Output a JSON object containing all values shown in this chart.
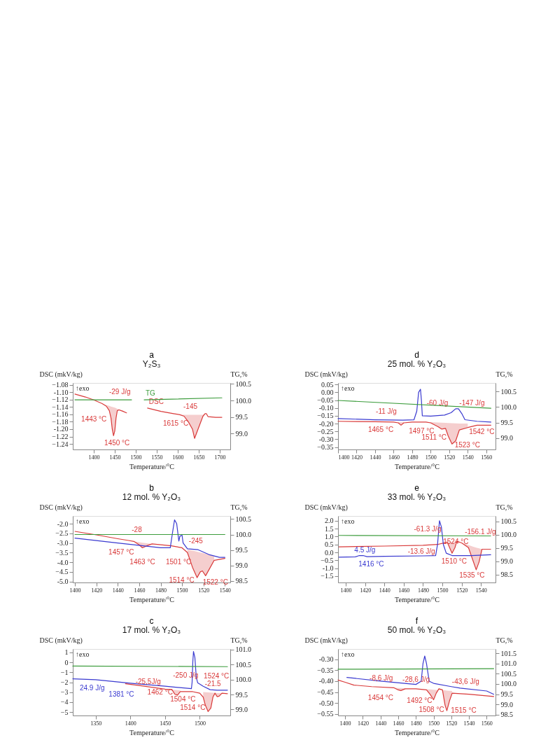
{
  "chart_data": [
    {
      "type": "line",
      "title": "a",
      "subtitle": "Y₂S₃",
      "xlabel": "Temperature/°C",
      "ylabel": "DSC (mkV/kg)",
      "y2label": "TG,%",
      "grid": false,
      "xlim": [
        1350,
        1725
      ],
      "xticks": [
        1400,
        1450,
        1500,
        1550,
        1600,
        1650,
        1700
      ],
      "ylim": [
        -1.255,
        -1.075
      ],
      "yticks": [
        -1.08,
        {
          "value": -1.1,
          "label": "-1.10"
        },
        -1.12,
        -1.14,
        -1.16,
        -1.18,
        {
          "value": -1.2,
          "label": "-1.20"
        },
        -1.22,
        -1.24
      ],
      "y2lim": [
        98.52,
        100.53
      ],
      "y2ticks": [
        {
          "value": 99,
          "label": "99.0"
        },
        99.5,
        {
          "value": 100,
          "label": "100.0"
        },
        100.5
      ],
      "series": [
        {
          "name": "DSC",
          "color": "#d93a3a",
          "x": [
            1355,
            1380,
            1400,
            1420,
            1430,
            1437,
            1441,
            1444,
            1447,
            1450,
            1453,
            1456,
            1460,
            1470,
            1478,
            1500,
            1528,
            1560,
            1590,
            1605,
            1615,
            1625,
            1635,
            1640,
            1650,
            1660,
            1665,
            1668,
            1672,
            1690,
            1705
          ],
          "values": [
            -1.105,
            -1.113,
            -1.121,
            -1.131,
            -1.138,
            -1.15,
            -1.17,
            -1.2,
            -1.218,
            -1.205,
            -1.17,
            -1.15,
            -1.148,
            -1.152,
            -1.156,
            null,
            -1.143,
            -1.152,
            -1.158,
            -1.161,
            -1.165,
            -1.18,
            -1.2,
            -1.225,
            -1.195,
            -1.165,
            -1.158,
            -1.158,
            -1.166,
            -1.168,
            -1.168
          ],
          "lower": [
            null,
            null,
            null,
            -1.131,
            -1.135,
            -1.137,
            -1.139,
            -1.14,
            -1.141,
            -1.142,
            -1.143,
            -1.145,
            -1.146,
            -1.15,
            null,
            null,
            null,
            null,
            null,
            -1.161,
            -1.161,
            -1.161,
            -1.161,
            -1.161,
            -1.161,
            -1.161,
            -1.158,
            null,
            null,
            null,
            null
          ],
          "upper": [
            null,
            null,
            null,
            -1.131,
            -1.138,
            -1.15,
            -1.17,
            -1.2,
            -1.218,
            -1.205,
            -1.17,
            -1.15,
            -1.148,
            -1.152,
            null,
            null,
            null,
            null,
            null,
            -1.161,
            -1.165,
            -1.18,
            -1.2,
            -1.225,
            -1.195,
            -1.165,
            -1.158,
            null,
            null,
            null,
            null
          ]
        },
        {
          "name": "TG",
          "color": "#3c9c3c",
          "axis": "y2",
          "x": [
            1355,
            1490,
            1500,
            1520,
            1705
          ],
          "values": [
            100.02,
            100.02,
            null,
            100.02,
            100.08
          ]
        }
      ],
      "annotations": [
        "↑exo",
        {
          "text": "-29 J/g",
          "x": 1447,
          "y": -1.141
        },
        {
          "text": "1443 °C",
          "x": 1437,
          "y": -1.15
        },
        {
          "text": "1450 °C",
          "x": 1447,
          "y": -1.218
        },
        {
          "text": "-145",
          "x": 1635,
          "y": -1.161
        },
        {
          "text": "1615 °C",
          "x": 1615,
          "y": -1.165
        }
      ]
    },
    {
      "type": "line",
      "title": "d",
      "subtitle": "25 mol. % Y₂O₃",
      "xlabel": "Temperature/°C",
      "ylabel": "DSC (mkV/kg)",
      "y2label": "TG,%",
      "grid": false,
      "xlim": [
        1400,
        1570
      ],
      "xticks": [
        1400,
        1420,
        1440,
        1460,
        1480,
        1500,
        1520,
        1540,
        1560
      ],
      "ylim": [
        -0.365,
        0.06
      ],
      "yticks": [
        0.05,
        {
          "value": 0,
          "label": "0.00"
        },
        -0.05,
        {
          "value": -0.1,
          "label": "-0.10"
        },
        -0.15,
        {
          "value": -0.2,
          "label": "-0.20"
        },
        -0.25,
        {
          "value": -0.3,
          "label": "-0.30"
        },
        -0.35
      ],
      "y2lim": [
        98.64,
        100.77
      ],
      "y2ticks": [
        {
          "value": 99,
          "label": "99.0"
        },
        99.5,
        {
          "value": 100,
          "label": "100.0"
        },
        100.5
      ],
      "series": [
        {
          "color": "#d93a3a",
          "x": [
            1400,
            1440,
            1460,
            1465,
            1468,
            1471,
            1480,
            1495,
            1500,
            1508,
            1512,
            1516,
            1519,
            1523,
            1527,
            1531,
            1540,
            1550,
            1565
          ],
          "values": [
            -0.185,
            -0.188,
            -0.19,
            -0.195,
            -0.21,
            -0.195,
            -0.19,
            -0.19,
            -0.195,
            -0.22,
            -0.235,
            -0.23,
            -0.28,
            -0.33,
            -0.31,
            -0.24,
            -0.225,
            -0.21,
            -0.21
          ],
          "lower": [
            null,
            null,
            -0.19,
            -0.19,
            -0.19,
            -0.19,
            null,
            -0.19,
            -0.191,
            -0.193,
            -0.194,
            -0.195,
            -0.196,
            -0.197,
            -0.198,
            -0.199,
            -0.2,
            null,
            null
          ],
          "upper": [
            null,
            null,
            -0.19,
            -0.195,
            -0.21,
            -0.195,
            null,
            -0.19,
            -0.195,
            -0.22,
            -0.235,
            -0.23,
            -0.28,
            -0.33,
            -0.31,
            -0.24,
            -0.225,
            null,
            null
          ]
        },
        {
          "color": "#3a3ad0",
          "x": [
            1400,
            1440,
            1470,
            1482,
            1485,
            1487,
            1489,
            1490,
            1491,
            1500,
            1515,
            1522,
            1527,
            1530,
            1534,
            1537,
            1550,
            1565
          ],
          "values": [
            -0.168,
            -0.175,
            -0.178,
            -0.175,
            -0.12,
            0.0,
            0.02,
            -0.05,
            -0.15,
            -0.152,
            -0.145,
            -0.13,
            -0.105,
            -0.105,
            -0.14,
            -0.175,
            -0.185,
            -0.19
          ]
        },
        {
          "color": "#3c9c3c",
          "axis": "y2",
          "x": [
            1400,
            1565
          ],
          "values": [
            100.21,
            99.96
          ]
        }
      ],
      "annotations": [
        "↑exo",
        {
          "text": "-11 J/g",
          "x": 1468,
          "y": -0.19
        },
        {
          "text": "1465 °C",
          "x": 1465,
          "y": -0.195
        },
        {
          "text": "-60 J/g",
          "x": 1508,
          "y": -0.193
        },
        {
          "text": "1497 °C",
          "x": 1500,
          "y": -0.195
        },
        {
          "text": "-147 J/g",
          "x": 1531,
          "y": -0.199
        },
        {
          "text": "1511 °C",
          "x": 1512,
          "y": -0.235
        },
        {
          "text": "1523 °C",
          "x": 1523,
          "y": -0.33
        },
        {
          "text": "1542 °C",
          "x": 1540,
          "y": -0.225
        }
      ]
    },
    {
      "type": "line",
      "title": "b",
      "subtitle": "12 mol. % Y₂O₃",
      "xlabel": "Temperature/°C",
      "ylabel": "DSC (mkV/kg)",
      "y2label": "TG,%",
      "grid": false,
      "xlim": [
        1398,
        1545
      ],
      "xticks": [
        1400,
        1420,
        1440,
        1460,
        1480,
        1500,
        1520,
        1540
      ],
      "ylim": [
        -5.05,
        -1.6
      ],
      "yticks": [
        {
          "value": -2,
          "label": "-2.0"
        },
        -2.5,
        {
          "value": -3,
          "label": "-3.0"
        },
        -3.5,
        {
          "value": -4,
          "label": "-4.0"
        },
        -4.5,
        {
          "value": -5,
          "label": "-5.0"
        }
      ],
      "y2lim": [
        98.45,
        100.6
      ],
      "y2ticks": [
        98.5,
        {
          "value": 99,
          "label": "99.0"
        },
        99.5,
        {
          "value": 100,
          "label": "100.0"
        },
        100.5
      ],
      "series": [
        {
          "color": "#d93a3a",
          "x": [
            1400,
            1420,
            1440,
            1450,
            1455,
            1460,
            1463,
            1467,
            1472,
            1490,
            1500,
            1505,
            1510,
            1514,
            1517,
            1519,
            1522,
            1526,
            1530,
            1540
          ],
          "values": [
            -2.4,
            -2.58,
            -2.78,
            -2.87,
            -2.92,
            -3.1,
            -3.25,
            -3.15,
            -3.05,
            -3.15,
            -3.25,
            -3.5,
            -4.3,
            -4.8,
            -4.5,
            -4.45,
            -4.7,
            -4.3,
            -3.9,
            -3.8
          ],
          "lower": [
            null,
            null,
            null,
            -2.87,
            -2.92,
            -2.96,
            -2.99,
            -3.02,
            -3.05,
            null,
            null,
            -3.35,
            -3.4,
            -3.45,
            -3.5,
            -3.52,
            -3.56,
            -3.62,
            -3.7,
            null
          ],
          "upper": [
            null,
            null,
            null,
            -2.87,
            -2.92,
            -3.1,
            -3.25,
            -3.15,
            -3.05,
            null,
            null,
            -3.5,
            -4.3,
            -4.8,
            -4.5,
            -4.45,
            -4.7,
            -4.3,
            -3.9,
            null
          ]
        },
        {
          "color": "#3a3ad0",
          "x": [
            1400,
            1440,
            1480,
            1489,
            1491,
            1493,
            1495,
            1497,
            1498,
            1500,
            1501,
            1505,
            1515,
            1525,
            1535,
            1540
          ],
          "values": [
            -2.75,
            -3.0,
            -3.25,
            -3.25,
            -2.5,
            -1.8,
            -2.0,
            -2.9,
            -2.65,
            -2.6,
            -3.0,
            -3.3,
            -3.35,
            -3.6,
            -3.75,
            -3.75
          ]
        },
        {
          "color": "#3c9c3c",
          "axis": "y2",
          "x": [
            1400,
            1540
          ],
          "values": [
            100.0,
            100.0
          ]
        }
      ],
      "annotations": [
        "↑exo",
        {
          "text": "-28",
          "x": 1463,
          "y": -2.99
        },
        {
          "text": "1457 °C",
          "x": 1455,
          "y": -2.92
        },
        {
          "text": "1463 °C",
          "x": 1463,
          "y": -3.25
        },
        {
          "text": "-245",
          "x": 1522,
          "y": -3.56
        },
        {
          "text": "1501 °C",
          "x": 1500,
          "y": -3.25
        },
        {
          "text": "1514 °C",
          "x": 1514,
          "y": -4.8
        },
        {
          "text": "1522 °C",
          "x": 1522,
          "y": -4.7
        }
      ]
    },
    {
      "type": "line",
      "title": "e",
      "subtitle": "33 mol. % Y₂O₃",
      "xlabel": "Temperature/°C",
      "ylabel": "DSC (mkV/kg)",
      "y2label": "TG,%",
      "grid": false,
      "xlim": [
        1392,
        1555
      ],
      "xticks": [
        1400,
        1420,
        1440,
        1460,
        1480,
        1500,
        1520,
        1540
      ],
      "ylim": [
        -1.9,
        2.3
      ],
      "yticks": [
        {
          "value": 2,
          "label": "2.0"
        },
        1.5,
        {
          "value": 1,
          "label": "1.0"
        },
        0.5,
        {
          "value": 0,
          "label": "0.0"
        },
        -0.5,
        {
          "value": -1,
          "label": "-1.0"
        },
        -1.5
      ],
      "y2lim": [
        98.2,
        100.7
      ],
      "y2ticks": [
        98.5,
        {
          "value": 99,
          "label": "99.0"
        },
        99.5,
        {
          "value": 100,
          "label": "100.0"
        },
        100.5
      ],
      "series": [
        {
          "color": "#d93a3a",
          "x": [
            1393,
            1440,
            1480,
            1495,
            1502,
            1505,
            1510,
            1513,
            1515,
            1520,
            1527,
            1531,
            1535,
            1538,
            1541,
            1550
          ],
          "values": [
            0.35,
            0.4,
            0.45,
            0.5,
            0.6,
            0.65,
            -0.05,
            0.3,
            0.7,
            0.6,
            0.3,
            -0.4,
            -1.1,
            -0.6,
            0.2,
            0.2
          ],
          "lower": [
            null,
            null,
            null,
            null,
            0.6,
            0.62,
            0.65,
            0.68,
            0.7,
            0.6,
            0.47,
            0.38,
            0.3,
            0.25,
            0.2,
            null
          ],
          "upper": [
            null,
            null,
            null,
            null,
            0.6,
            0.65,
            -0.05,
            0.3,
            0.7,
            0.6,
            0.3,
            -0.4,
            -1.1,
            -0.6,
            0.2,
            null
          ]
        },
        {
          "color": "#3a3ad0",
          "x": [
            1393,
            1410,
            1414,
            1418,
            1422,
            1440,
            1480,
            1493,
            1495,
            1497,
            1499,
            1501,
            1504,
            1510,
            1530,
            1550
          ],
          "values": [
            -0.3,
            -0.28,
            -0.2,
            -0.2,
            -0.27,
            -0.25,
            -0.22,
            -0.2,
            0.5,
            2.0,
            1.6,
            0.5,
            -0.05,
            -0.2,
            -0.2,
            -0.15
          ]
        },
        {
          "color": "#3c9c3c",
          "axis": "y2",
          "x": [
            1393,
            1550
          ],
          "values": [
            99.97,
            99.95
          ]
        }
      ],
      "annotations": [
        "↑exo",
        {
          "text": "4.5 J/g",
          "x": 1414,
          "y": -0.2
        },
        {
          "text": "1416 °C",
          "x": 1422,
          "y": -0.27
        },
        {
          "text": "-61.3 J/g",
          "x": 1505,
          "y": 0.62
        },
        {
          "text": "-13.6 J/g",
          "x": 1495,
          "y": 0.5
        },
        {
          "text": "1524 °C",
          "x": 1527,
          "y": 0.3
        },
        {
          "text": "-156.1 J/g",
          "x": 1535,
          "y": 0.3
        },
        {
          "text": "1510 °C",
          "x": 1510,
          "y": -0.05
        },
        {
          "text": "1535 °C",
          "x": 1535,
          "y": -1.1
        }
      ]
    },
    {
      "type": "line",
      "title": "c",
      "subtitle": "17 mol. % Y₂O₃",
      "xlabel": "Temperature/°C",
      "ylabel": "DSC (mkV/kg)",
      "y2label": "TG,%",
      "grid": false,
      "xlim": [
        1317,
        1544
      ],
      "xticks": [
        1350,
        1400,
        1450,
        1500
      ],
      "ylim": [
        -5.35,
        1.35
      ],
      "yticks": [
        1,
        0,
        -1,
        -2,
        -3,
        -4,
        -5
      ],
      "y2lim": [
        98.8,
        101.02
      ],
      "y2ticks": [
        {
          "value": 99,
          "label": "99.0"
        },
        99.5,
        {
          "value": 100,
          "label": "100.0"
        },
        100.5,
        {
          "value": 101,
          "label": "101.0"
        }
      ],
      "series": [
        {
          "color": "#d93a3a",
          "x": [
            1393,
            1420,
            1450,
            1460,
            1464,
            1468,
            1472,
            1490,
            1500,
            1505,
            1508,
            1512,
            1516,
            1519,
            1522,
            1525,
            1528,
            1532,
            1540
          ],
          "values": [
            -2.15,
            -2.4,
            -2.7,
            -2.75,
            -3.2,
            -3.3,
            -2.95,
            -2.95,
            -3.1,
            -3.5,
            -4.3,
            -4.95,
            -4.6,
            -3.5,
            -3.1,
            -3.45,
            -3.4,
            -3.1,
            -3.15
          ],
          "lower": [
            null,
            null,
            null,
            -2.75,
            -2.78,
            -2.8,
            -2.82,
            null,
            null,
            -2.98,
            -3.0,
            -3.02,
            -3.04,
            -3.06,
            -3.08,
            -3.1,
            -3.1,
            -3.1,
            null
          ],
          "upper": [
            null,
            null,
            null,
            -2.75,
            -3.2,
            -3.3,
            -2.95,
            null,
            null,
            -3.5,
            -4.3,
            -4.95,
            -4.6,
            -3.5,
            -3.1,
            -3.45,
            -3.4,
            -3.1,
            null
          ]
        },
        {
          "color": "#3a3ad0",
          "x": [
            1317,
            1350,
            1380,
            1400,
            1450,
            1488,
            1489,
            1490,
            1491,
            1493,
            1495,
            1497,
            1505,
            1515,
            1525,
            1540
          ],
          "values": [
            -1.65,
            -1.75,
            -1.95,
            -2.1,
            -2.4,
            -2.65,
            -2.0,
            0.0,
            1.1,
            0.5,
            -1.5,
            -2.05,
            -2.4,
            -2.75,
            -2.8,
            -2.8
          ]
        },
        {
          "color": "#3c9c3c",
          "axis": "y2",
          "x": [
            1317,
            1540
          ],
          "values": [
            100.45,
            100.43
          ]
        }
      ],
      "annotations": [
        "↑exo",
        {
          "text": "24.9 J/g",
          "x": 1350,
          "y": -1.75
        },
        {
          "text": "1381 °C",
          "x": 1380,
          "y": -1.95
        },
        {
          "text": "-25,5J/g",
          "x": 1464,
          "y": -2.78
        },
        {
          "text": "1462 °C",
          "x": 1460,
          "y": -2.75
        },
        {
          "text": "-250 J/g",
          "x": 1512,
          "y": -3.02
        },
        {
          "text": "1504 °C",
          "x": 1505,
          "y": -3.5
        },
        {
          "text": "1524 °C",
          "x": 1519,
          "y": -3.5
        },
        {
          "text": "-21.5",
          "x": 1525,
          "y": -3.1
        },
        {
          "text": "1514 °C",
          "x": 1512,
          "y": -4.95
        }
      ]
    },
    {
      "type": "line",
      "title": "f",
      "subtitle": "50 mol. % Y₂O₃",
      "xlabel": "Temperature/°C",
      "ylabel": "DSC (mkV/kg)",
      "y2label": "TG,%",
      "grid": false,
      "xlim": [
        1392,
        1570
      ],
      "xticks": [
        1400,
        1420,
        1440,
        1460,
        1480,
        1500,
        1520,
        1540,
        1560
      ],
      "ylim": [
        -0.557,
        -0.253
      ],
      "yticks": [
        {
          "value": -0.3,
          "label": "-0.30"
        },
        -0.35,
        {
          "value": -0.4,
          "label": "-0.40"
        },
        -0.45,
        {
          "value": -0.5,
          "label": "-0.50"
        },
        -0.55
      ],
      "y2lim": [
        98.46,
        101.71
      ],
      "y2ticks": [
        98.5,
        {
          "value": 99,
          "label": "99.0"
        },
        99.5,
        {
          "value": 100,
          "label": "100.0"
        },
        100.5,
        {
          "value": 101,
          "label": "101.0"
        },
        101.5
      ],
      "series": [
        {
          "color": "#d93a3a",
          "x": [
            1392,
            1400,
            1410,
            1430,
            1455,
            1460,
            1463,
            1468,
            1480,
            1492,
            1496,
            1500,
            1503,
            1506,
            1510,
            1513,
            1515,
            1518,
            1521,
            1540,
            1568
          ],
          "values": [
            -0.395,
            -0.405,
            -0.418,
            -0.425,
            -0.43,
            -0.44,
            -0.443,
            -0.435,
            -0.435,
            -0.44,
            -0.46,
            -0.485,
            -0.455,
            -0.435,
            -0.44,
            -0.51,
            -0.535,
            -0.49,
            -0.455,
            -0.46,
            -0.47
          ],
          "lower": [
            null,
            null,
            null,
            null,
            -0.43,
            -0.431,
            -0.431,
            -0.432,
            null,
            -0.437,
            -0.438,
            -0.439,
            -0.44,
            -0.44,
            -0.441,
            -0.442,
            -0.443,
            -0.444,
            -0.445,
            null,
            null
          ],
          "upper": [
            null,
            null,
            null,
            null,
            -0.43,
            -0.44,
            -0.443,
            -0.435,
            null,
            -0.44,
            -0.46,
            -0.485,
            -0.455,
            -0.435,
            -0.44,
            -0.51,
            -0.535,
            -0.49,
            -0.455,
            null,
            null
          ]
        },
        {
          "color": "#3a3ad0",
          "x": [
            1402,
            1440,
            1480,
            1486,
            1488,
            1490,
            1492,
            1495,
            1500,
            1520,
            1530,
            1560,
            1568
          ],
          "values": [
            -0.383,
            -0.4,
            -0.415,
            -0.4,
            -0.32,
            -0.285,
            -0.32,
            -0.4,
            -0.41,
            -0.425,
            -0.432,
            -0.445,
            -0.46
          ]
        },
        {
          "color": "#3c9c3c",
          "axis": "y2",
          "x": [
            1392,
            1568
          ],
          "values": [
            100.72,
            100.75
          ]
        }
      ],
      "annotations": [
        "↑exo",
        {
          "text": "-8,6 J/g",
          "x": 1463,
          "y": -0.431
        },
        {
          "text": "1454 °C",
          "x": 1460,
          "y": -0.44
        },
        {
          "text": "-28,6 J/g",
          "x": 1500,
          "y": -0.439
        },
        {
          "text": "1492 °C",
          "x": 1496,
          "y": -0.46
        },
        {
          "text": "-43,6 J/g",
          "x": 1518,
          "y": -0.444
        },
        {
          "text": "1508 °C",
          "x": 1500,
          "y": -0.485
        },
        {
          "text": "1515 °C",
          "x": 1515,
          "y": -0.535
        }
      ]
    }
  ]
}
